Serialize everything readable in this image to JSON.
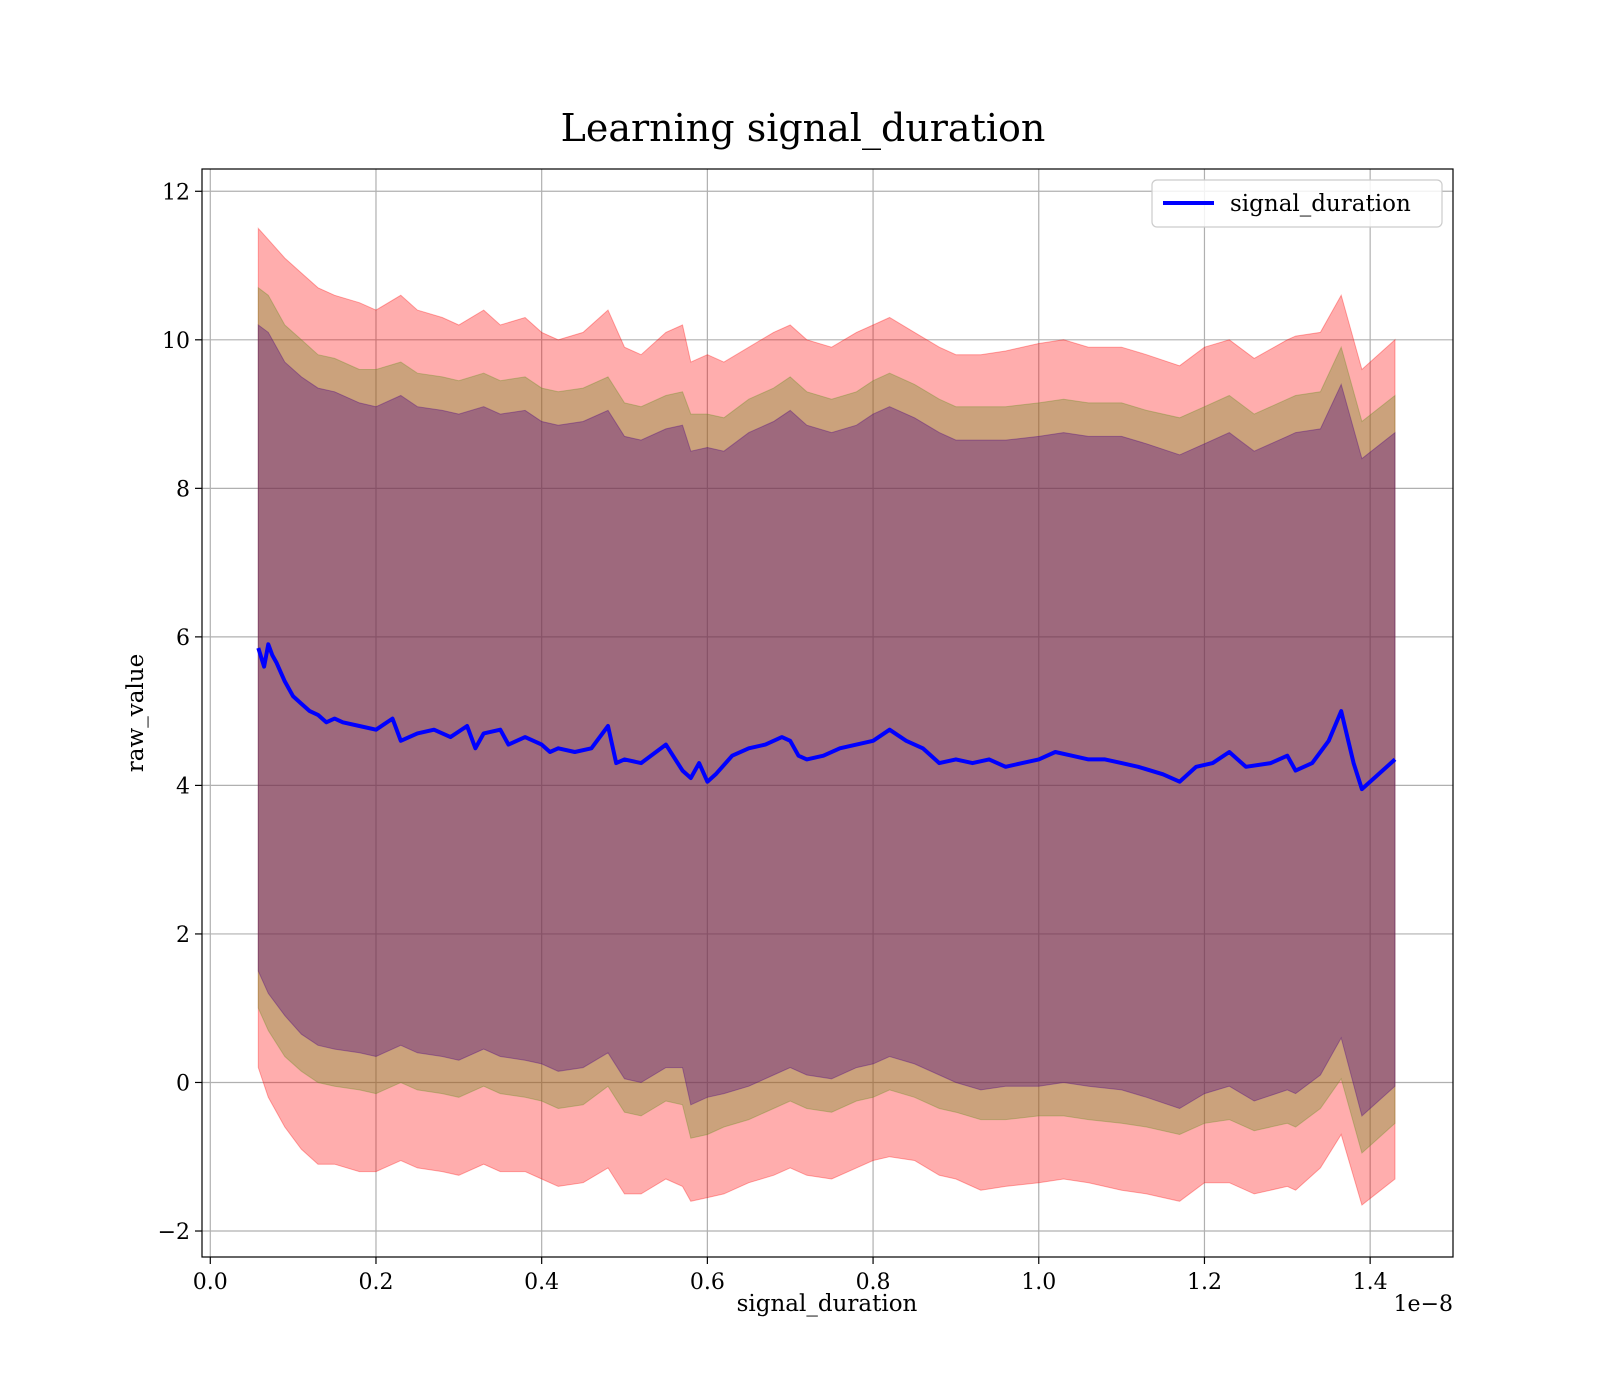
{
  "chart_data": {
    "type": "line",
    "title": "Learning signal_duration",
    "xlabel": "signal_duration",
    "ylabel": "raw_value",
    "x_offset_text": "1e−8",
    "xlim": [
      -0.01,
      1.5
    ],
    "ylim": [
      -2.35,
      12.3
    ],
    "grid": true,
    "legend_position": "top-right",
    "x_ticks": [
      0.0,
      0.2,
      0.4,
      0.6,
      0.8,
      1.0,
      1.2,
      1.4
    ],
    "x_tick_labels": [
      "0.0",
      "0.2",
      "0.4",
      "0.6",
      "0.8",
      "1.0",
      "1.2",
      "1.4"
    ],
    "y_ticks": [
      -2,
      0,
      2,
      4,
      6,
      8,
      10,
      12
    ],
    "y_tick_labels": [
      "−2",
      "0",
      "2",
      "4",
      "6",
      "8",
      "10",
      "12"
    ],
    "series": [
      {
        "name": "signal_duration",
        "color": "#0000ff",
        "x": [
          0.058,
          0.065,
          0.07,
          0.075,
          0.08,
          0.09,
          0.1,
          0.11,
          0.12,
          0.13,
          0.14,
          0.15,
          0.16,
          0.18,
          0.2,
          0.22,
          0.23,
          0.25,
          0.27,
          0.29,
          0.31,
          0.32,
          0.33,
          0.35,
          0.36,
          0.37,
          0.38,
          0.4,
          0.41,
          0.42,
          0.44,
          0.46,
          0.48,
          0.49,
          0.5,
          0.52,
          0.55,
          0.57,
          0.58,
          0.59,
          0.6,
          0.61,
          0.63,
          0.65,
          0.67,
          0.69,
          0.7,
          0.71,
          0.72,
          0.74,
          0.76,
          0.78,
          0.8,
          0.82,
          0.84,
          0.86,
          0.88,
          0.9,
          0.92,
          0.94,
          0.96,
          0.98,
          1.0,
          1.02,
          1.04,
          1.06,
          1.08,
          1.1,
          1.12,
          1.15,
          1.17,
          1.19,
          1.21,
          1.23,
          1.25,
          1.28,
          1.3,
          1.31,
          1.33,
          1.35,
          1.365,
          1.38,
          1.39,
          1.43
        ],
        "y": [
          5.85,
          5.6,
          5.9,
          5.75,
          5.65,
          5.4,
          5.2,
          5.1,
          5.0,
          4.95,
          4.85,
          4.9,
          4.85,
          4.8,
          4.75,
          4.9,
          4.6,
          4.7,
          4.75,
          4.65,
          4.8,
          4.5,
          4.7,
          4.75,
          4.55,
          4.6,
          4.65,
          4.55,
          4.45,
          4.5,
          4.45,
          4.5,
          4.8,
          4.3,
          4.35,
          4.3,
          4.55,
          4.2,
          4.1,
          4.3,
          4.05,
          4.15,
          4.4,
          4.5,
          4.55,
          4.65,
          4.6,
          4.4,
          4.35,
          4.4,
          4.5,
          4.55,
          4.6,
          4.75,
          4.6,
          4.5,
          4.3,
          4.35,
          4.3,
          4.35,
          4.25,
          4.3,
          4.35,
          4.45,
          4.4,
          4.35,
          4.35,
          4.3,
          4.25,
          4.15,
          4.05,
          4.25,
          4.3,
          4.45,
          4.25,
          4.3,
          4.4,
          4.2,
          4.3,
          4.6,
          5.0,
          4.3,
          3.95,
          4.35
        ]
      }
    ],
    "bands": [
      {
        "color": "#ff0000",
        "opacity": 0.32,
        "x": [
          0.058,
          0.07,
          0.09,
          0.11,
          0.13,
          0.15,
          0.18,
          0.2,
          0.23,
          0.25,
          0.28,
          0.3,
          0.33,
          0.35,
          0.38,
          0.4,
          0.42,
          0.45,
          0.48,
          0.5,
          0.52,
          0.55,
          0.57,
          0.58,
          0.6,
          0.62,
          0.65,
          0.68,
          0.7,
          0.72,
          0.75,
          0.78,
          0.8,
          0.82,
          0.85,
          0.88,
          0.9,
          0.93,
          0.96,
          1.0,
          1.03,
          1.06,
          1.1,
          1.13,
          1.17,
          1.2,
          1.23,
          1.26,
          1.3,
          1.31,
          1.34,
          1.365,
          1.39,
          1.43
        ],
        "upper": [
          11.5,
          11.35,
          11.1,
          10.9,
          10.7,
          10.6,
          10.5,
          10.4,
          10.6,
          10.4,
          10.3,
          10.2,
          10.4,
          10.2,
          10.3,
          10.1,
          10.0,
          10.1,
          10.4,
          9.9,
          9.8,
          10.1,
          10.2,
          9.7,
          9.8,
          9.7,
          9.9,
          10.1,
          10.2,
          10.0,
          9.9,
          10.1,
          10.2,
          10.3,
          10.1,
          9.9,
          9.8,
          9.8,
          9.85,
          9.95,
          10.0,
          9.9,
          9.9,
          9.8,
          9.65,
          9.9,
          10.0,
          9.75,
          10.0,
          10.05,
          10.1,
          10.6,
          9.6,
          10.0
        ],
        "lower": [
          0.2,
          -0.2,
          -0.6,
          -0.9,
          -1.1,
          -1.1,
          -1.2,
          -1.2,
          -1.05,
          -1.15,
          -1.2,
          -1.25,
          -1.1,
          -1.2,
          -1.2,
          -1.3,
          -1.4,
          -1.35,
          -1.15,
          -1.5,
          -1.5,
          -1.3,
          -1.4,
          -1.6,
          -1.55,
          -1.5,
          -1.35,
          -1.25,
          -1.15,
          -1.25,
          -1.3,
          -1.15,
          -1.05,
          -1.0,
          -1.05,
          -1.25,
          -1.3,
          -1.45,
          -1.4,
          -1.35,
          -1.3,
          -1.35,
          -1.45,
          -1.5,
          -1.6,
          -1.35,
          -1.35,
          -1.5,
          -1.4,
          -1.45,
          -1.15,
          -0.7,
          -1.65,
          -1.3
        ]
      },
      {
        "color": "#6b8e23",
        "opacity": 0.35,
        "x": [
          0.058,
          0.07,
          0.09,
          0.11,
          0.13,
          0.15,
          0.18,
          0.2,
          0.23,
          0.25,
          0.28,
          0.3,
          0.33,
          0.35,
          0.38,
          0.4,
          0.42,
          0.45,
          0.48,
          0.5,
          0.52,
          0.55,
          0.57,
          0.58,
          0.6,
          0.62,
          0.65,
          0.68,
          0.7,
          0.72,
          0.75,
          0.78,
          0.8,
          0.82,
          0.85,
          0.88,
          0.9,
          0.93,
          0.96,
          1.0,
          1.03,
          1.06,
          1.1,
          1.13,
          1.17,
          1.2,
          1.23,
          1.26,
          1.3,
          1.31,
          1.34,
          1.365,
          1.39,
          1.43
        ],
        "upper": [
          10.7,
          10.6,
          10.2,
          10.0,
          9.8,
          9.75,
          9.6,
          9.6,
          9.7,
          9.55,
          9.5,
          9.45,
          9.55,
          9.45,
          9.5,
          9.35,
          9.3,
          9.35,
          9.5,
          9.15,
          9.1,
          9.25,
          9.3,
          9.0,
          9.0,
          8.95,
          9.2,
          9.35,
          9.5,
          9.3,
          9.2,
          9.3,
          9.45,
          9.55,
          9.4,
          9.2,
          9.1,
          9.1,
          9.1,
          9.15,
          9.2,
          9.15,
          9.15,
          9.05,
          8.95,
          9.1,
          9.25,
          9.0,
          9.2,
          9.25,
          9.3,
          9.9,
          8.9,
          9.25
        ],
        "lower": [
          1.0,
          0.7,
          0.35,
          0.15,
          0.0,
          -0.05,
          -0.1,
          -0.15,
          -0.0,
          -0.1,
          -0.15,
          -0.2,
          -0.05,
          -0.15,
          -0.2,
          -0.25,
          -0.35,
          -0.3,
          -0.05,
          -0.4,
          -0.45,
          -0.25,
          -0.3,
          -0.75,
          -0.7,
          -0.6,
          -0.5,
          -0.35,
          -0.25,
          -0.35,
          -0.4,
          -0.25,
          -0.2,
          -0.1,
          -0.2,
          -0.35,
          -0.4,
          -0.5,
          -0.5,
          -0.45,
          -0.45,
          -0.5,
          -0.55,
          -0.6,
          -0.7,
          -0.55,
          -0.5,
          -0.65,
          -0.55,
          -0.6,
          -0.35,
          0.05,
          -0.95,
          -0.55
        ]
      },
      {
        "color": "#4b0082",
        "opacity": 0.35,
        "x": [
          0.058,
          0.07,
          0.09,
          0.11,
          0.13,
          0.15,
          0.18,
          0.2,
          0.23,
          0.25,
          0.28,
          0.3,
          0.33,
          0.35,
          0.38,
          0.4,
          0.42,
          0.45,
          0.48,
          0.5,
          0.52,
          0.55,
          0.57,
          0.58,
          0.6,
          0.62,
          0.65,
          0.68,
          0.7,
          0.72,
          0.75,
          0.78,
          0.8,
          0.82,
          0.85,
          0.88,
          0.9,
          0.93,
          0.96,
          1.0,
          1.03,
          1.06,
          1.1,
          1.13,
          1.17,
          1.2,
          1.23,
          1.26,
          1.3,
          1.31,
          1.34,
          1.365,
          1.39,
          1.43
        ],
        "upper": [
          10.2,
          10.1,
          9.7,
          9.5,
          9.35,
          9.3,
          9.15,
          9.1,
          9.25,
          9.1,
          9.05,
          9.0,
          9.1,
          9.0,
          9.05,
          8.9,
          8.85,
          8.9,
          9.05,
          8.7,
          8.65,
          8.8,
          8.85,
          8.5,
          8.55,
          8.5,
          8.75,
          8.9,
          9.05,
          8.85,
          8.75,
          8.85,
          9.0,
          9.1,
          8.95,
          8.75,
          8.65,
          8.65,
          8.65,
          8.7,
          8.75,
          8.7,
          8.7,
          8.6,
          8.45,
          8.6,
          8.75,
          8.5,
          8.7,
          8.75,
          8.8,
          9.4,
          8.4,
          8.75
        ],
        "lower": [
          1.5,
          1.2,
          0.9,
          0.65,
          0.5,
          0.45,
          0.4,
          0.35,
          0.5,
          0.4,
          0.35,
          0.3,
          0.45,
          0.35,
          0.3,
          0.25,
          0.15,
          0.2,
          0.4,
          0.05,
          0.0,
          0.2,
          0.2,
          -0.3,
          -0.2,
          -0.15,
          -0.05,
          0.1,
          0.2,
          0.1,
          0.05,
          0.2,
          0.25,
          0.35,
          0.25,
          0.1,
          0.0,
          -0.1,
          -0.05,
          -0.05,
          0.0,
          -0.05,
          -0.1,
          -0.2,
          -0.35,
          -0.15,
          -0.05,
          -0.25,
          -0.1,
          -0.15,
          0.1,
          0.6,
          -0.45,
          -0.05
        ]
      }
    ]
  }
}
